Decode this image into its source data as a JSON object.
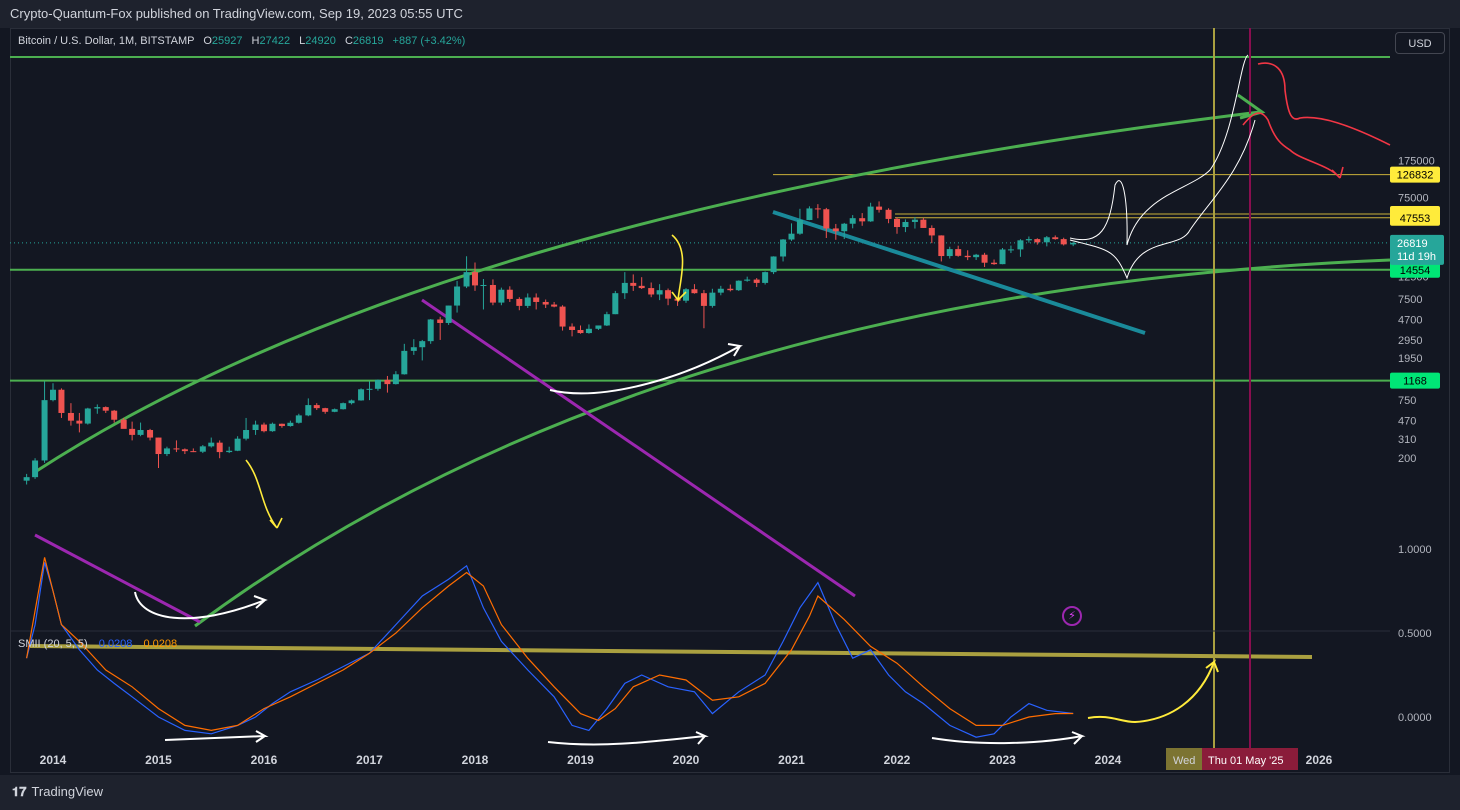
{
  "publisher": "Crypto-Quantum-Fox published on TradingView.com, Sep 19, 2023 05:55 UTC",
  "legend": {
    "symbol": "Bitcoin / U.S. Dollar, 1M, BITSTAMP",
    "open_label": "O",
    "open": "25927",
    "high_label": "H",
    "high": "27422",
    "low_label": "L",
    "low": "24920",
    "close_label": "C",
    "close": "26819",
    "change": "+887 (+3.42%)"
  },
  "currency_button": "USD",
  "brand": "TradingView",
  "indicator": {
    "label": "SMII (20, 5, 5)",
    "value1": "0.0208",
    "value2": "0.0208"
  },
  "colors": {
    "background": "#131722",
    "up": "#26a69a",
    "down": "#ef5350",
    "channel": "#4caf50",
    "support": "#00e676"
  },
  "chart_data": {
    "type": "candlestick",
    "symbol": "BTCUSD",
    "interval": "1M",
    "y_scale": "log",
    "y_ticks": [
      "175000",
      "75000",
      "29500",
      "19500",
      "12500",
      "7500",
      "4700",
      "2950",
      "1950",
      "1250",
      "750",
      "470",
      "310",
      "200"
    ],
    "x_ticks": [
      "2014",
      "2015",
      "2016",
      "2017",
      "2018",
      "2019",
      "2020",
      "2021",
      "2022",
      "2023",
      "2024",
      "2026"
    ],
    "levels": [
      {
        "value": "126832",
        "color": "#ffeb3b",
        "text_color": "#000000"
      },
      {
        "value": "51750",
        "color": "#ffeb3b",
        "text_color": "#000000"
      },
      {
        "value": "47553",
        "color": "#ffeb3b",
        "text_color": "#000000"
      },
      {
        "value": "14554",
        "color": "#00e676",
        "text_color": "#000000"
      },
      {
        "value": "1168",
        "color": "#00e676",
        "text_color": "#000000"
      }
    ],
    "current_price": {
      "value": "26819",
      "countdown": "11d 19h"
    },
    "date_markers": [
      "Wed",
      "Thu 01 May '25"
    ],
    "candles": [
      [
        2013.75,
        120,
        140,
        110,
        130
      ],
      [
        2013.83,
        130,
        200,
        125,
        190
      ],
      [
        2013.92,
        190,
        1150,
        180,
        750
      ],
      [
        2014.0,
        750,
        1100,
        730,
        950
      ],
      [
        2014.08,
        950,
        980,
        500,
        560
      ],
      [
        2014.17,
        560,
        700,
        420,
        470
      ],
      [
        2014.25,
        470,
        560,
        360,
        440
      ],
      [
        2014.33,
        440,
        630,
        430,
        620
      ],
      [
        2014.42,
        620,
        680,
        550,
        640
      ],
      [
        2014.5,
        640,
        650,
        560,
        590
      ],
      [
        2014.58,
        590,
        600,
        450,
        480
      ],
      [
        2014.67,
        480,
        500,
        420,
        390
      ],
      [
        2014.75,
        390,
        460,
        300,
        340
      ],
      [
        2014.83,
        340,
        450,
        330,
        380
      ],
      [
        2014.92,
        380,
        390,
        300,
        320
      ],
      [
        2015.0,
        320,
        320,
        160,
        220
      ],
      [
        2015.08,
        220,
        260,
        210,
        250
      ],
      [
        2015.17,
        250,
        300,
        230,
        245
      ],
      [
        2015.25,
        245,
        250,
        220,
        235
      ],
      [
        2015.33,
        235,
        250,
        230,
        232
      ],
      [
        2015.42,
        232,
        270,
        225,
        262
      ],
      [
        2015.5,
        262,
        320,
        255,
        285
      ],
      [
        2015.58,
        285,
        300,
        200,
        230
      ],
      [
        2015.67,
        230,
        260,
        225,
        237
      ],
      [
        2015.75,
        237,
        330,
        235,
        312
      ],
      [
        2015.83,
        312,
        500,
        300,
        380
      ],
      [
        2015.92,
        380,
        470,
        340,
        430
      ],
      [
        2016.0,
        430,
        450,
        360,
        370
      ],
      [
        2016.08,
        370,
        450,
        365,
        438
      ],
      [
        2016.17,
        438,
        440,
        400,
        416
      ],
      [
        2016.25,
        416,
        470,
        410,
        448
      ],
      [
        2016.33,
        448,
        550,
        440,
        530
      ],
      [
        2016.42,
        530,
        780,
        520,
        670
      ],
      [
        2016.5,
        670,
        700,
        600,
        625
      ],
      [
        2016.58,
        625,
        630,
        550,
        575
      ],
      [
        2016.67,
        575,
        620,
        570,
        610
      ],
      [
        2016.75,
        610,
        710,
        605,
        700
      ],
      [
        2016.83,
        700,
        760,
        680,
        745
      ],
      [
        2016.92,
        745,
        980,
        740,
        960
      ],
      [
        2017.0,
        960,
        1150,
        750,
        970
      ],
      [
        2017.08,
        970,
        1200,
        930,
        1190
      ],
      [
        2017.17,
        1190,
        1300,
        890,
        1080
      ],
      [
        2017.25,
        1080,
        1450,
        1070,
        1350
      ],
      [
        2017.33,
        1350,
        2700,
        1340,
        2300
      ],
      [
        2017.42,
        2300,
        3000,
        2100,
        2500
      ],
      [
        2017.5,
        2500,
        2950,
        1850,
        2870
      ],
      [
        2017.58,
        2870,
        4750,
        2700,
        4700
      ],
      [
        2017.67,
        4700,
        5000,
        2950,
        4340
      ],
      [
        2017.75,
        4340,
        6450,
        4150,
        6450
      ],
      [
        2017.83,
        6450,
        11300,
        5500,
        9950
      ],
      [
        2017.92,
        9950,
        19800,
        9600,
        13800
      ],
      [
        2018.0,
        13800,
        17200,
        9000,
        10200
      ],
      [
        2018.08,
        10200,
        11800,
        5900,
        10300
      ],
      [
        2018.17,
        10300,
        11700,
        6500,
        6900
      ],
      [
        2018.25,
        6900,
        9700,
        6500,
        9250
      ],
      [
        2018.33,
        9250,
        10000,
        7000,
        7500
      ],
      [
        2018.42,
        7500,
        7800,
        5800,
        6400
      ],
      [
        2018.5,
        6400,
        8500,
        6100,
        7750
      ],
      [
        2018.58,
        7750,
        8500,
        5900,
        7000
      ],
      [
        2018.67,
        7000,
        7400,
        6100,
        6600
      ],
      [
        2018.75,
        6600,
        7000,
        6200,
        6300
      ],
      [
        2018.83,
        6300,
        6500,
        3650,
        4000
      ],
      [
        2018.92,
        4000,
        4300,
        3200,
        3700
      ],
      [
        2019.0,
        3700,
        4100,
        3400,
        3450
      ],
      [
        2019.08,
        3450,
        4200,
        3400,
        3800
      ],
      [
        2019.17,
        3800,
        4100,
        3700,
        4100
      ],
      [
        2019.25,
        4100,
        5600,
        4050,
        5300
      ],
      [
        2019.33,
        5300,
        9000,
        5300,
        8550
      ],
      [
        2019.42,
        8550,
        13800,
        7500,
        10800
      ],
      [
        2019.5,
        10800,
        13100,
        9000,
        10100
      ],
      [
        2019.58,
        10100,
        12300,
        9400,
        9600
      ],
      [
        2019.67,
        9600,
        10900,
        7800,
        8300
      ],
      [
        2019.75,
        8300,
        10500,
        7300,
        9150
      ],
      [
        2019.83,
        9150,
        9500,
        6500,
        7550
      ],
      [
        2019.92,
        7550,
        7750,
        6400,
        7200
      ],
      [
        2020.0,
        7200,
        9600,
        6850,
        9350
      ],
      [
        2020.08,
        9350,
        10500,
        8450,
        8550
      ],
      [
        2020.17,
        8550,
        9200,
        3850,
        6400
      ],
      [
        2020.25,
        6400,
        9450,
        6150,
        8650
      ],
      [
        2020.33,
        8650,
        10100,
        8150,
        9450
      ],
      [
        2020.42,
        9450,
        10400,
        8900,
        9150
      ],
      [
        2020.5,
        9150,
        11450,
        9000,
        11350
      ],
      [
        2020.58,
        11350,
        12450,
        11100,
        11650
      ],
      [
        2020.67,
        11650,
        12050,
        9850,
        10800
      ],
      [
        2020.75,
        10800,
        14000,
        10400,
        13800
      ],
      [
        2020.83,
        13800,
        19800,
        13200,
        19700
      ],
      [
        2020.92,
        19700,
        29300,
        17600,
        29000
      ],
      [
        2021.0,
        29000,
        41900,
        28100,
        33100
      ],
      [
        2021.08,
        33100,
        58300,
        32300,
        45200
      ],
      [
        2021.17,
        45200,
        61700,
        45000,
        58800
      ],
      [
        2021.25,
        58800,
        64800,
        47000,
        57700
      ],
      [
        2021.33,
        57700,
        59500,
        30000,
        37300
      ],
      [
        2021.42,
        37300,
        41300,
        28800,
        35000
      ],
      [
        2021.5,
        35000,
        42300,
        29300,
        41500
      ],
      [
        2021.58,
        41500,
        50500,
        37400,
        47100
      ],
      [
        2021.67,
        47100,
        52900,
        39600,
        43800
      ],
      [
        2021.75,
        43800,
        66900,
        43300,
        61300
      ],
      [
        2021.83,
        61300,
        69000,
        53500,
        57000
      ],
      [
        2021.92,
        57000,
        59000,
        42000,
        46300
      ],
      [
        2022.0,
        46300,
        47900,
        33000,
        38500
      ],
      [
        2022.08,
        38500,
        45800,
        34300,
        43200
      ],
      [
        2022.17,
        43200,
        48200,
        37200,
        45500
      ],
      [
        2022.25,
        45500,
        47400,
        37700,
        37700
      ],
      [
        2022.33,
        37700,
        40000,
        26700,
        31800
      ],
      [
        2022.42,
        31800,
        31900,
        17600,
        19900
      ],
      [
        2022.5,
        19900,
        24600,
        18800,
        23300
      ],
      [
        2022.58,
        23300,
        25200,
        19600,
        20000
      ],
      [
        2022.67,
        20000,
        22700,
        18150,
        19400
      ],
      [
        2022.75,
        19400,
        20900,
        18200,
        20500
      ],
      [
        2022.83,
        20500,
        21400,
        15500,
        17100
      ],
      [
        2022.92,
        17100,
        18400,
        16300,
        16550
      ],
      [
        2023.0,
        16550,
        23900,
        16500,
        23100
      ],
      [
        2023.08,
        23100,
        25250,
        21350,
        23150
      ],
      [
        2023.17,
        23150,
        29200,
        19550,
        28450
      ],
      [
        2023.25,
        28450,
        31050,
        26950,
        29250
      ],
      [
        2023.33,
        29250,
        29800,
        25800,
        27200
      ],
      [
        2023.42,
        27200,
        31400,
        24800,
        30500
      ],
      [
        2023.5,
        30500,
        31800,
        28850,
        29250
      ],
      [
        2023.58,
        29250,
        30200,
        25300,
        25950
      ],
      [
        2023.67,
        25927,
        27422,
        24920,
        26819
      ]
    ],
    "smii": {
      "ticks": [
        "1.0000",
        "0.5000",
        "0.0000"
      ],
      "signal": [
        [
          2013.75,
          0.35
        ],
        [
          2013.92,
          0.95
        ],
        [
          2014.08,
          0.55
        ],
        [
          2014.25,
          0.45
        ],
        [
          2014.5,
          0.28
        ],
        [
          2014.75,
          0.18
        ],
        [
          2015.0,
          0.05
        ],
        [
          2015.25,
          -0.05
        ],
        [
          2015.5,
          -0.08
        ],
        [
          2015.75,
          -0.05
        ],
        [
          2016.0,
          0.05
        ],
        [
          2016.25,
          0.12
        ],
        [
          2016.5,
          0.2
        ],
        [
          2016.75,
          0.28
        ],
        [
          2017.0,
          0.38
        ],
        [
          2017.25,
          0.5
        ],
        [
          2017.5,
          0.65
        ],
        [
          2017.75,
          0.78
        ],
        [
          2017.92,
          0.86
        ],
        [
          2018.08,
          0.78
        ],
        [
          2018.25,
          0.55
        ],
        [
          2018.5,
          0.35
        ],
        [
          2018.75,
          0.18
        ],
        [
          2019.0,
          0.02
        ],
        [
          2019.17,
          -0.02
        ],
        [
          2019.33,
          0.05
        ],
        [
          2019.5,
          0.18
        ],
        [
          2019.75,
          0.25
        ],
        [
          2020.0,
          0.22
        ],
        [
          2020.25,
          0.1
        ],
        [
          2020.5,
          0.12
        ],
        [
          2020.75,
          0.2
        ],
        [
          2021.0,
          0.4
        ],
        [
          2021.17,
          0.6
        ],
        [
          2021.25,
          0.72
        ],
        [
          2021.5,
          0.58
        ],
        [
          2021.75,
          0.42
        ],
        [
          2022.0,
          0.32
        ],
        [
          2022.25,
          0.18
        ],
        [
          2022.5,
          0.05
        ],
        [
          2022.75,
          -0.05
        ],
        [
          2023.0,
          -0.05
        ],
        [
          2023.25,
          0.0
        ],
        [
          2023.5,
          0.02
        ],
        [
          2023.67,
          0.0208
        ]
      ],
      "main": [
        [
          2013.75,
          0.35
        ],
        [
          2013.83,
          0.55
        ],
        [
          2013.92,
          0.92
        ],
        [
          2014.0,
          0.75
        ],
        [
          2014.08,
          0.55
        ],
        [
          2014.25,
          0.4
        ],
        [
          2014.42,
          0.28
        ],
        [
          2014.58,
          0.2
        ],
        [
          2014.75,
          0.12
        ],
        [
          2015.0,
          0.0
        ],
        [
          2015.25,
          -0.08
        ],
        [
          2015.5,
          -0.1
        ],
        [
          2015.75,
          -0.05
        ],
        [
          2015.92,
          0.0
        ],
        [
          2016.08,
          0.08
        ],
        [
          2016.25,
          0.15
        ],
        [
          2016.5,
          0.22
        ],
        [
          2016.75,
          0.3
        ],
        [
          2017.0,
          0.38
        ],
        [
          2017.25,
          0.55
        ],
        [
          2017.5,
          0.72
        ],
        [
          2017.75,
          0.82
        ],
        [
          2017.92,
          0.9
        ],
        [
          2018.08,
          0.65
        ],
        [
          2018.25,
          0.45
        ],
        [
          2018.5,
          0.28
        ],
        [
          2018.75,
          0.12
        ],
        [
          2018.92,
          -0.05
        ],
        [
          2019.08,
          -0.08
        ],
        [
          2019.25,
          0.05
        ],
        [
          2019.42,
          0.2
        ],
        [
          2019.58,
          0.25
        ],
        [
          2019.83,
          0.18
        ],
        [
          2020.08,
          0.15
        ],
        [
          2020.25,
          0.02
        ],
        [
          2020.5,
          0.15
        ],
        [
          2020.75,
          0.25
        ],
        [
          2020.92,
          0.45
        ],
        [
          2021.08,
          0.65
        ],
        [
          2021.25,
          0.8
        ],
        [
          2021.42,
          0.55
        ],
        [
          2021.58,
          0.35
        ],
        [
          2021.75,
          0.4
        ],
        [
          2021.92,
          0.25
        ],
        [
          2022.08,
          0.15
        ],
        [
          2022.25,
          0.08
        ],
        [
          2022.5,
          -0.05
        ],
        [
          2022.75,
          -0.12
        ],
        [
          2022.92,
          -0.1
        ],
        [
          2023.08,
          0.0
        ],
        [
          2023.25,
          0.08
        ],
        [
          2023.42,
          0.04
        ],
        [
          2023.67,
          0.0208
        ]
      ]
    }
  }
}
